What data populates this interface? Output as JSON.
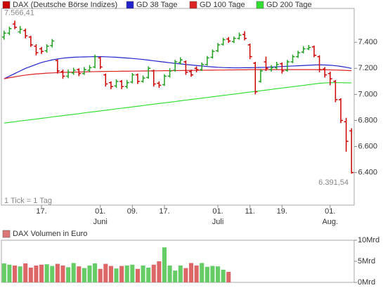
{
  "chart_data": [
    {
      "type": "ohlc",
      "name": "DAX (Deutsche Börse Indizes)",
      "categories": [
        null,
        null,
        null,
        null,
        null,
        null,
        null,
        "17.",
        null,
        null,
        null,
        null,
        null,
        null,
        null,
        null,
        null,
        null,
        "01.",
        null,
        null,
        null,
        null,
        null,
        "09.",
        null,
        null,
        null,
        null,
        null,
        "17.",
        null,
        null,
        null,
        null,
        null,
        null,
        null,
        null,
        null,
        "01.",
        null,
        null,
        null,
        null,
        null,
        "11.",
        null,
        null,
        null,
        null,
        null,
        "19.",
        null,
        null,
        null,
        null,
        null,
        null,
        null,
        null,
        "01.",
        null,
        null,
        null,
        null
      ],
      "months": [
        null,
        null,
        null,
        null,
        null,
        null,
        null,
        null,
        null,
        null,
        null,
        null,
        null,
        null,
        null,
        null,
        null,
        null,
        "Juni",
        null,
        null,
        null,
        null,
        null,
        null,
        null,
        null,
        null,
        null,
        null,
        null,
        null,
        null,
        null,
        null,
        null,
        null,
        null,
        null,
        null,
        "Juli",
        null,
        null,
        null,
        null,
        null,
        null,
        null,
        null,
        null,
        null,
        null,
        null,
        null,
        null,
        null,
        null,
        null,
        null,
        null,
        null,
        "Aug.",
        null,
        null,
        null,
        null
      ],
      "open": [
        7440,
        7470,
        7540,
        7480,
        7490,
        7440,
        7370,
        7350,
        7335,
        7375,
        7260,
        7175,
        7140,
        7165,
        7190,
        7160,
        7185,
        7210,
        7280,
        7150,
        7090,
        7065,
        7100,
        7060,
        7095,
        7150,
        7100,
        7130,
        7180,
        7085,
        7075,
        7140,
        7185,
        7245,
        7250,
        7175,
        7200,
        7190,
        7230,
        7285,
        7335,
        7385,
        7425,
        7405,
        7430,
        7460,
        7380,
        7240,
        7100,
        7250,
        7190,
        7205,
        7235,
        7185,
        7250,
        7290,
        7325,
        7350,
        7365,
        7290,
        7195,
        7160,
        7100,
        6960,
        6790,
        6720
      ],
      "high": [
        7490,
        7520,
        7566.41,
        7525,
        7505,
        7450,
        7385,
        7365,
        7385,
        7425,
        7270,
        7190,
        7190,
        7205,
        7200,
        7210,
        7225,
        7305,
        7290,
        7160,
        7100,
        7115,
        7110,
        7110,
        7165,
        7160,
        7145,
        7215,
        7190,
        7100,
        7155,
        7200,
        7265,
        7285,
        7260,
        7190,
        7215,
        7245,
        7295,
        7345,
        7395,
        7435,
        7440,
        7445,
        7475,
        7485,
        7390,
        7250,
        7195,
        7290,
        7225,
        7250,
        7245,
        7265,
        7305,
        7335,
        7370,
        7380,
        7375,
        7300,
        7210,
        7175,
        7110,
        6970,
        6820,
        6740
      ],
      "low": [
        7420,
        7455,
        7500,
        7465,
        7430,
        7365,
        7300,
        7310,
        7320,
        7360,
        7160,
        7120,
        7125,
        7150,
        7140,
        7150,
        7170,
        7200,
        7195,
        7060,
        7040,
        7050,
        7040,
        7045,
        7085,
        7080,
        7090,
        7120,
        7060,
        7050,
        7065,
        7130,
        7175,
        7230,
        7150,
        7135,
        7170,
        7180,
        7220,
        7275,
        7325,
        7375,
        7395,
        7395,
        7420,
        7415,
        7270,
        7000,
        7090,
        7180,
        7175,
        7190,
        7160,
        7175,
        7240,
        7280,
        7315,
        7340,
        7285,
        7170,
        7130,
        7070,
        6940,
        6780,
        6560,
        6391.54
      ],
      "close": [
        7470,
        7505,
        7515,
        7500,
        7450,
        7380,
        7320,
        7330,
        7370,
        7410,
        7180,
        7140,
        7170,
        7185,
        7160,
        7190,
        7205,
        7290,
        7210,
        7080,
        7060,
        7100,
        7060,
        7090,
        7150,
        7100,
        7125,
        7200,
        7080,
        7070,
        7140,
        7180,
        7250,
        7265,
        7170,
        7150,
        7190,
        7230,
        7280,
        7330,
        7380,
        7420,
        7410,
        7430,
        7455,
        7430,
        7290,
        7020,
        7180,
        7200,
        7205,
        7230,
        7180,
        7250,
        7290,
        7320,
        7350,
        7360,
        7300,
        7190,
        7150,
        7120,
        6960,
        6800,
        6640,
        6400
      ],
      "up_color": "#22a022",
      "down_color": "#cc0000",
      "series": [
        {
          "name": "GD 38 Tage",
          "color": "#2222cc",
          "values": [
            7120,
            7140,
            7160,
            7180,
            7200,
            7215,
            7230,
            7245,
            7255,
            7265,
            7272,
            7278,
            7282,
            7285,
            7287,
            7288,
            7289,
            7290,
            7290,
            7289,
            7287,
            7285,
            7282,
            7279,
            7276,
            7272,
            7268,
            7263,
            7258,
            7253,
            7248,
            7243,
            7238,
            7234,
            7230,
            7226,
            7222,
            7218,
            7214,
            7211,
            7208,
            7206,
            7205,
            7204,
            7204,
            7205,
            7205,
            7206,
            7207,
            7208,
            7210,
            7212,
            7214,
            7216,
            7218,
            7220,
            7222,
            7224,
            7226,
            7227,
            7226,
            7224,
            7220,
            7215,
            7208,
            7200
          ]
        },
        {
          "name": "GD 100 Tage",
          "color": "#dd2222",
          "values": [
            7120,
            7128,
            7135,
            7142,
            7148,
            7153,
            7157,
            7160,
            7163,
            7165,
            7167,
            7169,
            7170,
            7171,
            7172,
            7173,
            7174,
            7175,
            7176,
            7176,
            7177,
            7177,
            7178,
            7178,
            7179,
            7179,
            7180,
            7180,
            7181,
            7181,
            7182,
            7182,
            7183,
            7183,
            7184,
            7184,
            7185,
            7185,
            7186,
            7186,
            7187,
            7187,
            7188,
            7188,
            7189,
            7189,
            7190,
            7190,
            7190,
            7190,
            7190,
            7190,
            7190,
            7190,
            7190,
            7190,
            7190,
            7190,
            7190,
            7189,
            7189,
            7188,
            7187,
            7186,
            7184,
            7182
          ]
        },
        {
          "name": "GD 200 Tage",
          "color": "#33dd33",
          "values": [
            6780,
            6785,
            6790,
            6796,
            6801,
            6806,
            6811,
            6816,
            6821,
            6827,
            6832,
            6837,
            6842,
            6847,
            6852,
            6858,
            6863,
            6868,
            6873,
            6878,
            6883,
            6889,
            6894,
            6899,
            6904,
            6909,
            6914,
            6920,
            6925,
            6930,
            6935,
            6940,
            6945,
            6951,
            6956,
            6961,
            6966,
            6971,
            6976,
            6982,
            6987,
            6992,
            6997,
            7002,
            7007,
            7013,
            7018,
            7023,
            7028,
            7033,
            7038,
            7044,
            7049,
            7054,
            7059,
            7064,
            7069,
            7075,
            7080,
            7085,
            7088,
            7090,
            7090,
            7090,
            7089,
            7088
          ]
        }
      ],
      "ylim": [
        6150,
        7660
      ],
      "yticks": [
        {
          "value": 6400,
          "label": "6.400"
        },
        {
          "value": 6600,
          "label": "6.600"
        },
        {
          "value": 6800,
          "label": "6.800"
        },
        {
          "value": 7000,
          "label": "7.000"
        },
        {
          "value": 7200,
          "label": "7.200"
        },
        {
          "value": 7400,
          "label": "7.400"
        }
      ],
      "annotations": [
        {
          "text": "7.566,41",
          "value": 7566.41
        },
        {
          "text": "6.391,54",
          "value": 6391.54
        }
      ],
      "footnote": "1 Tick = 1 Tag"
    },
    {
      "type": "bar",
      "title": "DAX Volumen in Euro",
      "color": "#dd7777",
      "up_color": "#66cc66",
      "down_color": "#dd6666",
      "values": [
        4.5,
        4.2,
        4.0,
        3.8,
        4.5,
        3.5,
        4.0,
        4.2,
        4.3,
        3.9,
        4.4,
        4.0,
        3.6,
        4.6,
        3.8,
        3.4,
        4.0,
        4.5,
        3.2,
        4.4,
        3.9,
        3.3,
        3.9,
        4.0,
        4.2,
        3.2,
        4.0,
        3.5,
        4.2,
        5.0,
        8.3,
        4.0,
        2.8,
        4.0,
        3.4,
        4.6,
        4.0,
        4.6,
        3.7,
        3.9,
        3.8,
        3.0,
        2.5,
        null,
        null,
        null,
        null,
        null,
        null,
        null,
        null,
        null,
        null,
        null,
        null,
        null,
        null,
        null,
        null,
        null,
        null,
        null,
        null,
        null,
        null,
        null
      ],
      "ylim": [
        0,
        10
      ],
      "yticks": [
        {
          "value": 0,
          "label": "0Mrd"
        },
        {
          "value": 5,
          "label": "5Mrd"
        },
        {
          "value": 10,
          "label": "10Mrd"
        }
      ]
    }
  ]
}
